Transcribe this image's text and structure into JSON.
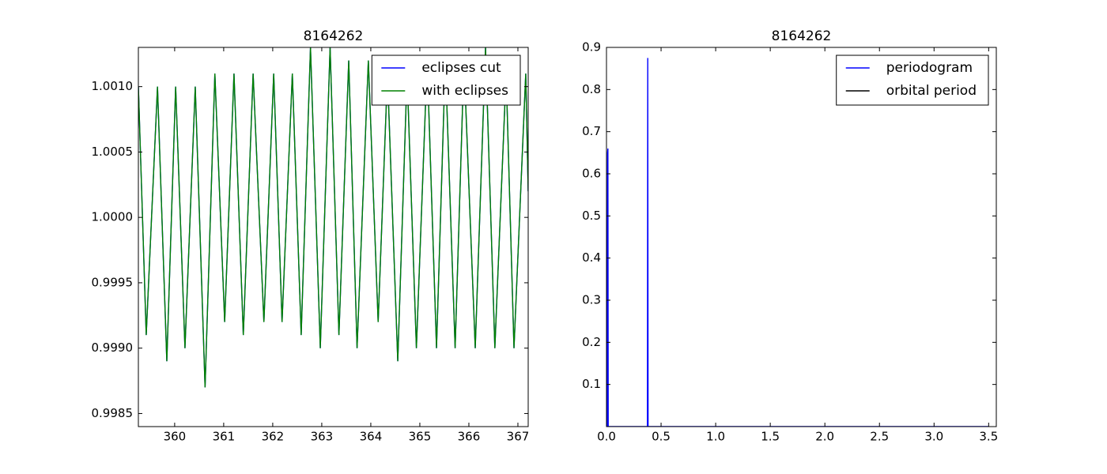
{
  "chart_data": [
    {
      "type": "line",
      "title": "8164262",
      "x": [
        359.26,
        359.42,
        359.65,
        359.84,
        360.02,
        360.21,
        360.42,
        360.62,
        360.82,
        361.02,
        361.21,
        361.4,
        361.6,
        361.82,
        362.02,
        362.19,
        362.4,
        362.58,
        362.77,
        362.97,
        363.17,
        363.35,
        363.55,
        363.72,
        363.95,
        364.15,
        364.34,
        364.55,
        364.74,
        364.93,
        365.15,
        365.34,
        365.52,
        365.72,
        365.9,
        366.13,
        366.34,
        366.53,
        366.76,
        366.92,
        367.16,
        367.21
      ],
      "series": [
        {
          "name": "eclipses cut",
          "color": "#0000ff",
          "values": [
            1.001,
            0.9991,
            1.001,
            0.9989,
            1.001,
            0.999,
            1.001,
            0.9987,
            1.0011,
            0.9992,
            1.0011,
            0.9991,
            1.0011,
            0.9992,
            1.0011,
            0.9992,
            1.0011,
            0.9991,
            1.0013,
            0.999,
            1.0013,
            0.9991,
            1.0012,
            0.999,
            1.0012,
            0.9992,
            1.0011,
            0.9989,
            1.0011,
            0.999,
            1.0012,
            0.999,
            1.0012,
            0.999,
            1.0012,
            0.999,
            1.0013,
            0.999,
            1.0011,
            0.999,
            1.0011,
            1.0002
          ]
        },
        {
          "name": "with eclipses",
          "color": "#008000",
          "values": [
            1.001,
            0.9991,
            1.001,
            0.9989,
            1.001,
            0.999,
            1.001,
            0.9987,
            1.0011,
            0.9992,
            1.0011,
            0.9991,
            1.0011,
            0.9992,
            1.0011,
            0.9992,
            1.0011,
            0.9991,
            1.0013,
            0.999,
            1.0013,
            0.9991,
            1.0012,
            0.999,
            1.0012,
            0.9992,
            1.0011,
            0.9989,
            1.0011,
            0.999,
            1.0012,
            0.999,
            1.0012,
            0.999,
            1.0012,
            0.999,
            1.0013,
            0.999,
            1.0011,
            0.999,
            1.0011,
            1.0002
          ]
        }
      ],
      "xlim": [
        359.26,
        367.21
      ],
      "ylim": [
        0.9984,
        1.0013
      ],
      "xticks": [
        360,
        361,
        362,
        363,
        364,
        365,
        366,
        367
      ],
      "yticks": [
        0.9985,
        {
          "value": 0.999,
          "label": "0.9990"
        },
        0.9995,
        {
          "value": 1,
          "label": "1.0000"
        },
        1.0005,
        {
          "value": 1.001,
          "label": "1.0010"
        }
      ],
      "legend": "upper right"
    },
    {
      "type": "line",
      "title": "8164262",
      "series": [
        {
          "name": "periodogram",
          "color": "#0000ff",
          "x": [
            0.0,
            0.003,
            0.006,
            0.01,
            0.013,
            0.016,
            0.375,
            0.378,
            0.381,
            3.5
          ],
          "values": [
            0,
            0.13,
            0,
            0.65,
            0.66,
            0,
            0,
            0.875,
            0,
            0
          ]
        },
        {
          "name": "orbital period",
          "color": "#000000",
          "x": [],
          "values": []
        }
      ],
      "xlim": [
        0,
        3.57
      ],
      "ylim": [
        0,
        0.9
      ],
      "xticks": [
        {
          "value": 0,
          "label": "0.0"
        },
        0.5,
        {
          "value": 1,
          "label": "1.0"
        },
        1.5,
        {
          "value": 2,
          "label": "2.0"
        },
        2.5,
        {
          "value": 3,
          "label": "3.0"
        },
        3.5
      ],
      "yticks": [
        0.1,
        0.2,
        0.3,
        0.4,
        0.5,
        0.6,
        0.7,
        0.8,
        0.9
      ],
      "legend": "upper right"
    }
  ]
}
